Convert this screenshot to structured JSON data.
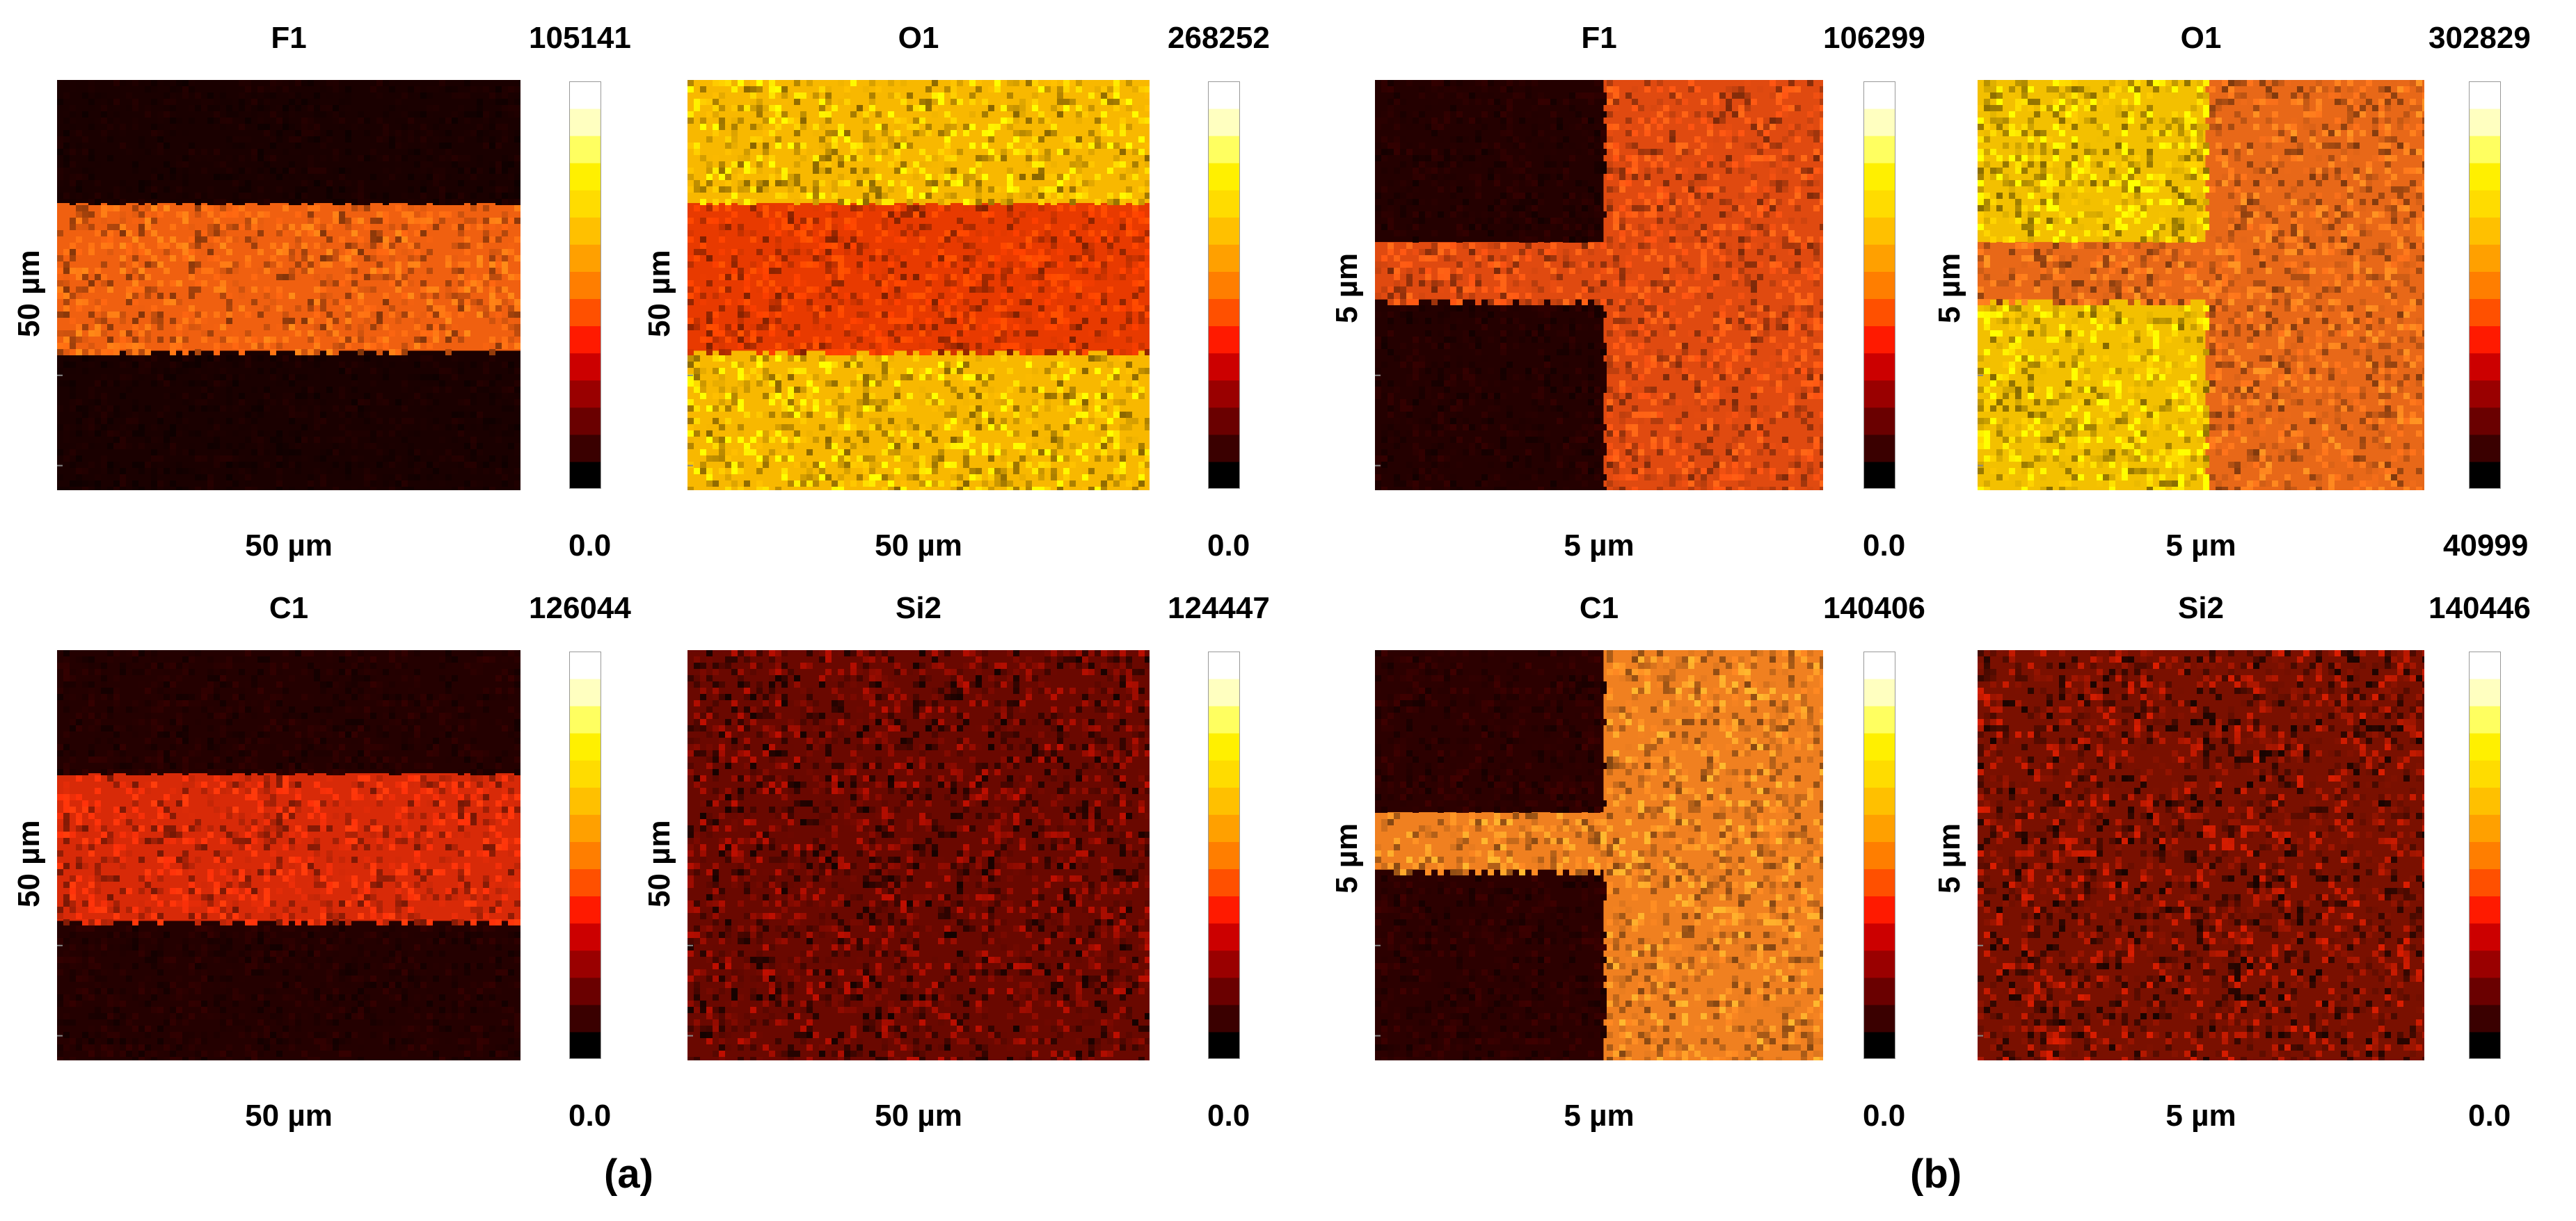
{
  "figure_labels": [
    "(a)",
    "(b)"
  ],
  "colormap": [
    "#000000",
    "#3a0000",
    "#6a0000",
    "#9a0000",
    "#cc0000",
    "#ff1a00",
    "#ff5000",
    "#ff7e00",
    "#ffa000",
    "#ffc000",
    "#ffdc00",
    "#fff000",
    "#ffff60",
    "#ffffc0",
    "#ffffff"
  ],
  "panels": [
    {
      "title": "F1",
      "max": "105141",
      "min": "0.0",
      "xlabel": "50 µm",
      "ylabel": "50 µm",
      "pattern": "hband",
      "base": "#1a0000",
      "band": "#f06010"
    },
    {
      "title": "O1",
      "max": "268252",
      "min": "0.0",
      "xlabel": "50 µm",
      "ylabel": "50 µm",
      "pattern": "hband",
      "base": "#f8b800",
      "band": "#e83a00"
    },
    {
      "title": "F1",
      "max": "106299",
      "min": "0.0",
      "xlabel": "5 µm",
      "ylabel": "5 µm",
      "pattern": "tee",
      "base": "#240000",
      "band": "#e04a10"
    },
    {
      "title": "O1",
      "max": "302829",
      "min": "40999",
      "xlabel": "5 µm",
      "ylabel": "5 µm",
      "pattern": "tee",
      "base": "#f3c000",
      "band": "#e86818"
    },
    {
      "title": "C1",
      "max": "126044",
      "min": "0.0",
      "xlabel": "50 µm",
      "ylabel": "50 µm",
      "pattern": "hband",
      "base": "#240000",
      "band": "#d82a08"
    },
    {
      "title": "Si2",
      "max": "124447",
      "min": "0.0",
      "xlabel": "50 µm",
      "ylabel": "50 µm",
      "pattern": "noise",
      "base": "#6a0800",
      "band": "#6a0800"
    },
    {
      "title": "C1",
      "max": "140406",
      "min": "0.0",
      "xlabel": "5 µm",
      "ylabel": "5 µm",
      "pattern": "tee",
      "base": "#2c0000",
      "band": "#f08020"
    },
    {
      "title": "Si2",
      "max": "140446",
      "min": "0.0",
      "xlabel": "5 µm",
      "ylabel": "5 µm",
      "pattern": "noise",
      "base": "#7a1000",
      "band": "#7a1000"
    }
  ]
}
